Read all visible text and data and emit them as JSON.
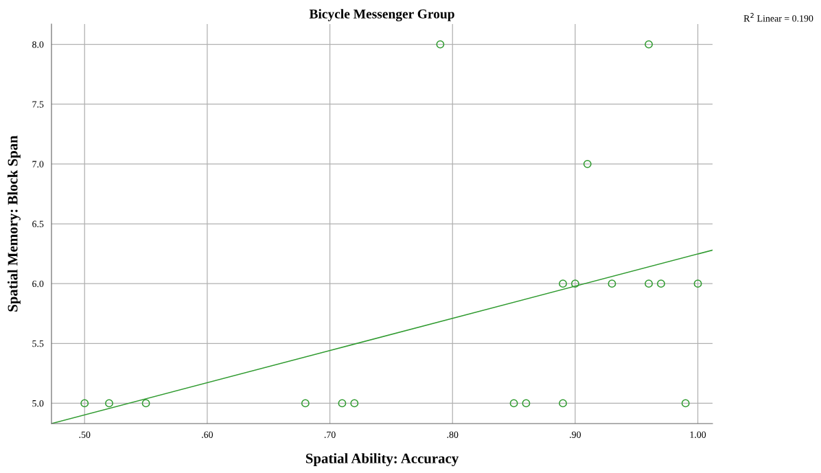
{
  "chart_data": {
    "type": "scatter",
    "title": "Bicycle Messenger Group",
    "xlabel": "Spatial Ability: Accuracy",
    "ylabel": "Spatial Memory: Block Span",
    "annotations": [
      "R$^{2}$ Linear = 0.190"
    ],
    "series": [
      {
        "color": "#2e9a2e",
        "x": [
          0.5,
          0.52,
          0.55,
          0.68,
          0.71,
          0.72,
          0.85,
          0.86,
          0.89,
          0.99,
          0.89,
          0.9,
          0.93,
          0.96,
          0.97,
          1.0,
          0.91,
          0.79,
          0.96
        ],
        "values": [
          5,
          5,
          5,
          5,
          5,
          5,
          5,
          5,
          5,
          5,
          6,
          6,
          6,
          6,
          6,
          6,
          7,
          8,
          8
        ],
        "marker": "circle"
      },
      {
        "type": "line",
        "color": "#2e9a2e",
        "x": [
          0.473,
          1.012
        ],
        "values": [
          4.83,
          6.28
        ]
      }
    ],
    "xlim": [
      0.473,
      1.012
    ],
    "ylim": [
      4.83,
      8.17
    ],
    "xticks": [
      {
        "value": 0.5,
        "label": ".50"
      },
      {
        "value": 0.6,
        "label": ".60"
      },
      {
        "value": 0.7,
        "label": ".70"
      },
      {
        "value": 0.8,
        "label": ".80"
      },
      {
        "value": 0.9,
        "label": ".90"
      },
      {
        "value": 1.0,
        "label": "1.00"
      }
    ],
    "yticks": [
      {
        "value": 5,
        "label": "5.0"
      },
      {
        "value": 5.5,
        "label": "5.5"
      },
      {
        "value": 6,
        "label": "6.0"
      },
      {
        "value": 6.5,
        "label": "6.5"
      },
      {
        "value": 7,
        "label": "7.0"
      },
      {
        "value": 7.5,
        "label": "7.5"
      },
      {
        "value": 8,
        "label": "8.0"
      }
    ],
    "grid": true,
    "legend": false
  }
}
